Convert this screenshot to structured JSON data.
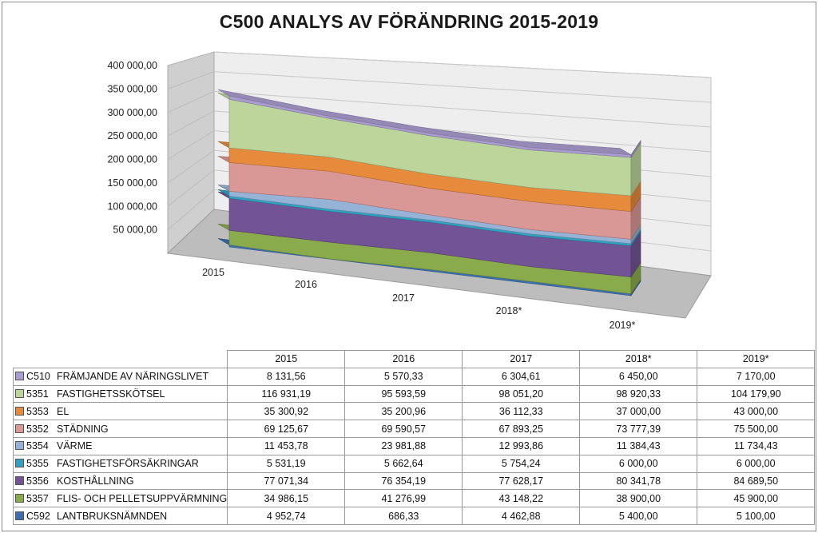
{
  "chart_data": {
    "type": "area",
    "title": "C500 ANALYS AV FÖRÄNDRING 2015-2019",
    "categories": [
      "2015",
      "2016",
      "2017",
      "2018*",
      "2019*"
    ],
    "yticks": [
      "50 000,00",
      "100 000,00",
      "150 000,00",
      "200 000,00",
      "250 000,00",
      "300 000,00",
      "350 000,00",
      "400 000,00"
    ],
    "ylim": [
      0,
      400000
    ],
    "stacked": true,
    "series": [
      {
        "code": "C510",
        "name": "FRÄMJANDE AV NÄRINGSLIVET",
        "color": "#a99cce",
        "values": [
          8131.56,
          5570.33,
          6304.61,
          6450.0,
          7170.0
        ],
        "labels": [
          "8 131,56",
          "5 570,33",
          "6 304,61",
          "6 450,00",
          "7 170,00"
        ]
      },
      {
        "code": "5351",
        "name": "FASTIGHETSSKÖTSEL",
        "color": "#bcd59a",
        "values": [
          116931.19,
          95593.59,
          98051.2,
          98920.33,
          104179.9
        ],
        "labels": [
          "116 931,19",
          "95 593,59",
          "98 051,20",
          "98 920,33",
          "104 179,90"
        ]
      },
      {
        "code": "5353",
        "name": "EL",
        "color": "#e68a3c",
        "values": [
          35300.92,
          35200.96,
          36112.33,
          37000.0,
          43000.0
        ],
        "labels": [
          "35 300,92",
          "35 200,96",
          "36 112,33",
          "37 000,00",
          "43 000,00"
        ]
      },
      {
        "code": "5352",
        "name": "STÄDNING",
        "color": "#d99795",
        "values": [
          69125.67,
          69590.57,
          67893.25,
          73777.39,
          75500.0
        ],
        "labels": [
          "69 125,67",
          "69 590,57",
          "67 893,25",
          "73 777,39",
          "75 500,00"
        ]
      },
      {
        "code": "5354",
        "name": "VÄRME",
        "color": "#95b3d7",
        "values": [
          11453.78,
          23981.88,
          12993.86,
          11384.43,
          11734.43
        ],
        "labels": [
          "11 453,78",
          "23 981,88",
          "12 993,86",
          "11 384,43",
          "11 734,43"
        ]
      },
      {
        "code": "5355",
        "name": "FASTIGHETSFÖRSÄKRINGAR",
        "color": "#31a2c0",
        "values": [
          5531.19,
          5662.64,
          5754.24,
          6000.0,
          6000.0
        ],
        "labels": [
          "5 531,19",
          "5 662,64",
          "5 754,24",
          "6 000,00",
          "6 000,00"
        ]
      },
      {
        "code": "5356",
        "name": "KOSTHÅLLNING",
        "color": "#725395",
        "values": [
          77071.34,
          76354.19,
          77628.17,
          80341.78,
          84689.5
        ],
        "labels": [
          "77 071,34",
          "76 354,19",
          "77 628,17",
          "80 341,78",
          "84 689,50"
        ]
      },
      {
        "code": "5357",
        "name": "FLIS- OCH PELLETSUPPVÄRMNING",
        "color": "#8aab4c",
        "values": [
          34986.15,
          41276.99,
          43148.22,
          38900.0,
          45900.0
        ],
        "labels": [
          "34 986,15",
          "41 276,99",
          "43 148,22",
          "38 900,00",
          "45 900,00"
        ]
      },
      {
        "code": "C592",
        "name": "LANTBRUKSNÄMNDEN",
        "color": "#3b6fb0",
        "values": [
          4952.74,
          686.33,
          4462.88,
          5400.0,
          5100.0
        ],
        "labels": [
          "4 952,74",
          "686,33",
          "4 462,88",
          "5 400,00",
          "5 100,00"
        ]
      }
    ]
  }
}
